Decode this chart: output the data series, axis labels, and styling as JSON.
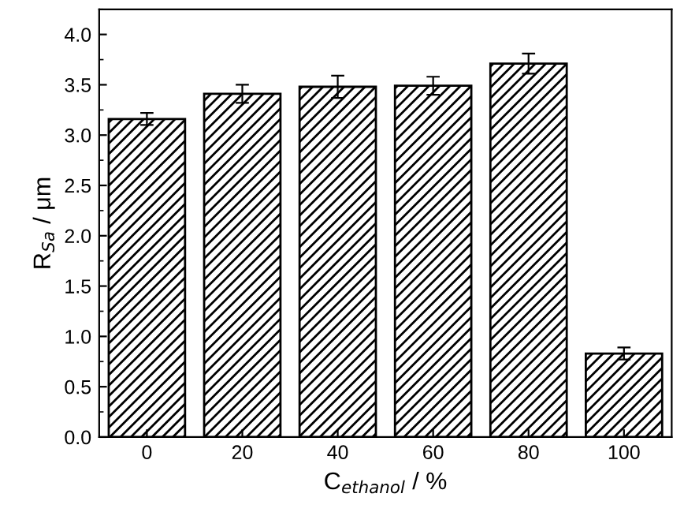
{
  "chart_data": {
    "type": "bar",
    "xlabel": "C$_{ethanol}$ / %",
    "ylabel": "R$_{Sa}$ / μm",
    "categories": [
      "0",
      "20",
      "40",
      "60",
      "80",
      "100"
    ],
    "values": [
      3.16,
      3.41,
      3.48,
      3.49,
      3.71,
      0.83
    ],
    "errors": [
      0.06,
      0.09,
      0.11,
      0.09,
      0.1,
      0.06
    ],
    "color": "#000000",
    "ylim": [
      0,
      4.25
    ],
    "yticks": [
      {
        "value": 0,
        "label": "0.0"
      },
      0.5,
      {
        "value": 1,
        "label": "1.0"
      },
      1.5,
      {
        "value": 2,
        "label": "2.0"
      },
      2.5,
      {
        "value": 3,
        "label": "3.0"
      },
      3.5,
      {
        "value": 4,
        "label": "4.0"
      }
    ],
    "grid": false,
    "legend": false
  }
}
